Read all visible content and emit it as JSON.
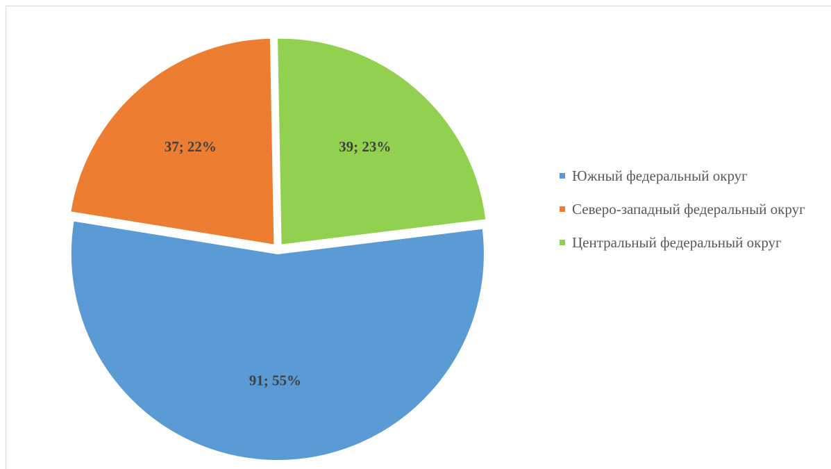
{
  "chart_data": {
    "type": "pie",
    "categories": [
      "Южный федеральный округ",
      "Северо-западный федеральный округ",
      "Центральный федеральный округ"
    ],
    "values": [
      91,
      37,
      39
    ],
    "value_labels": [
      "91; 55%",
      "37; 22%",
      "39; 23%"
    ],
    "colors": [
      "#5b9bd5",
      "#ed7d31",
      "#92d050"
    ],
    "legend": "right"
  }
}
